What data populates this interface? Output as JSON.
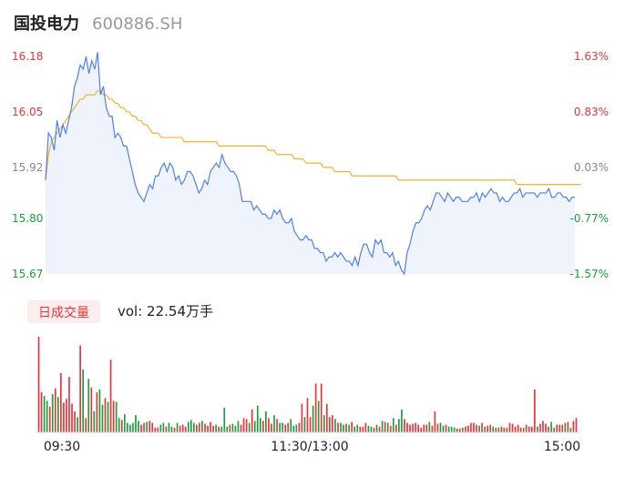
{
  "header": {
    "name": "国投电力",
    "code": "600886.SH"
  },
  "colors": {
    "up": "#e8333a",
    "down": "#1a9e3b",
    "neutral": "#888888",
    "price_line": "#4f81e8",
    "price_fill": "#eef3fc",
    "avg_line": "#f2b42c",
    "vol_button_bg": "#fdeeee"
  },
  "volume_panel": {
    "button_label": "日成交量",
    "vol_text": "vol: 22.54万手"
  },
  "chart_data": [
    {
      "type": "line",
      "title": "",
      "y_ticks": [
        "16.18",
        "16.05",
        "15.92",
        "15.80",
        "15.67"
      ],
      "y_tick_values": [
        16.18,
        16.05,
        15.92,
        15.8,
        15.67
      ],
      "pct_ticks": [
        "1.63%",
        "0.83%",
        "0.03%",
        "-0.77%",
        "-1.57%"
      ],
      "ylim": [
        15.67,
        16.18
      ],
      "x_ticks": [
        "09:30",
        "11:30/13:00",
        "15:00"
      ],
      "series": [
        {
          "values": [
            15.89,
            16.0,
            15.99,
            15.96,
            16.03,
            15.99,
            16.02,
            16.0,
            16.03,
            16.06,
            16.11,
            16.13,
            16.16,
            16.15,
            16.18,
            16.14,
            16.17,
            16.15,
            16.19,
            16.09,
            16.11,
            16.06,
            16.04,
            16.04,
            15.99,
            16.0,
            15.99,
            15.97,
            15.97,
            15.94,
            15.91,
            15.88,
            15.86,
            15.85,
            15.84,
            15.86,
            15.88,
            15.87,
            15.9,
            15.9,
            15.92,
            15.93,
            15.91,
            15.93,
            15.92,
            15.89,
            15.9,
            15.88,
            15.89,
            15.91,
            15.91,
            15.9,
            15.88,
            15.86,
            15.87,
            15.89,
            15.88,
            15.91,
            15.92,
            15.93,
            15.92,
            15.95,
            15.93,
            15.92,
            15.91,
            15.91,
            15.9,
            15.88,
            15.84,
            15.84,
            15.84,
            15.84,
            15.82,
            15.83,
            15.82,
            15.81,
            15.81,
            15.8,
            15.8,
            15.82,
            15.81,
            15.82,
            15.8,
            15.79,
            15.79,
            15.8,
            15.77,
            15.76,
            15.75,
            15.75,
            15.76,
            15.75,
            15.75,
            15.73,
            15.73,
            15.72,
            15.72,
            15.7,
            15.71,
            15.71,
            15.72,
            15.71,
            15.72,
            15.71,
            15.7,
            15.7,
            15.69,
            15.71,
            15.69,
            15.72,
            15.74,
            15.74,
            15.72,
            15.71,
            15.75,
            15.74,
            15.75,
            15.72,
            15.72,
            15.71,
            15.72,
            15.69,
            15.7,
            15.68,
            15.67,
            15.72,
            15.74,
            15.77,
            15.79,
            15.79,
            15.8,
            15.82,
            15.83,
            15.82,
            15.84,
            15.86,
            15.86,
            15.85,
            15.84,
            15.86,
            15.85,
            15.84,
            15.85,
            15.85,
            15.84,
            15.84,
            15.84,
            15.85,
            15.85,
            15.86,
            15.84,
            15.86,
            15.85,
            15.86,
            15.87,
            15.86,
            15.86,
            15.84,
            15.85,
            15.84,
            15.84,
            15.85,
            15.86,
            15.86,
            15.87,
            15.85,
            15.86,
            15.86,
            15.86,
            15.86,
            15.85,
            15.86,
            15.86,
            15.86,
            15.87,
            15.85,
            15.85,
            15.86,
            15.86,
            15.85,
            15.85,
            15.84,
            15.85,
            15.85
          ]
        },
        {
          "values": [
            15.89,
            15.95,
            15.98,
            15.99,
            16.0,
            16.01,
            16.02,
            16.03,
            16.04,
            16.05,
            16.06,
            16.07,
            16.08,
            16.08,
            16.09,
            16.09,
            16.09,
            16.09,
            16.1,
            16.1,
            16.09,
            16.09,
            16.08,
            16.08,
            16.07,
            16.07,
            16.06,
            16.06,
            16.05,
            16.05,
            16.04,
            16.04,
            16.03,
            16.03,
            16.02,
            16.02,
            16.01,
            16.0,
            16.0,
            16.0,
            15.99,
            15.99,
            15.99,
            15.99,
            15.99,
            15.99,
            15.99,
            15.99,
            15.98,
            15.98,
            15.98,
            15.98,
            15.98,
            15.98,
            15.98,
            15.98,
            15.98,
            15.98,
            15.98,
            15.98,
            15.97,
            15.97,
            15.97,
            15.97,
            15.97,
            15.97,
            15.97,
            15.97,
            15.97,
            15.97,
            15.97,
            15.97,
            15.97,
            15.97,
            15.97,
            15.97,
            15.97,
            15.96,
            15.96,
            15.96,
            15.95,
            15.95,
            15.95,
            15.95,
            15.95,
            15.95,
            15.94,
            15.94,
            15.94,
            15.94,
            15.93,
            15.93,
            15.93,
            15.93,
            15.93,
            15.93,
            15.92,
            15.92,
            15.92,
            15.92,
            15.91,
            15.91,
            15.91,
            15.91,
            15.91,
            15.91,
            15.9,
            15.9,
            15.9,
            15.9,
            15.9,
            15.9,
            15.9,
            15.9,
            15.9,
            15.9,
            15.9,
            15.9,
            15.9,
            15.9,
            15.9,
            15.9,
            15.89,
            15.89,
            15.89,
            15.89,
            15.89,
            15.89,
            15.89,
            15.89,
            15.89,
            15.89,
            15.89,
            15.89,
            15.89,
            15.89,
            15.89,
            15.89,
            15.89,
            15.89,
            15.89,
            15.89,
            15.89,
            15.89,
            15.89,
            15.89,
            15.89,
            15.89,
            15.89,
            15.89,
            15.89,
            15.89,
            15.89,
            15.89,
            15.89,
            15.89,
            15.89,
            15.89,
            15.89,
            15.89,
            15.89,
            15.89,
            15.89,
            15.88,
            15.88,
            15.88,
            15.88,
            15.88,
            15.88,
            15.88,
            15.88,
            15.88,
            15.88,
            15.88,
            15.88,
            15.88,
            15.88,
            15.88,
            15.88,
            15.88,
            15.88,
            15.88,
            15.88,
            15.88,
            15.88,
            15.88
          ]
        }
      ]
    },
    {
      "type": "bar",
      "title": "",
      "values": [
        100,
        42,
        38,
        33,
        27,
        40,
        46,
        37,
        62,
        31,
        35,
        58,
        30,
        22,
        16,
        91,
        66,
        15,
        56,
        47,
        22,
        42,
        45,
        29,
        36,
        32,
        76,
        33,
        32,
        15,
        13,
        19,
        10,
        8,
        10,
        18,
        12,
        8,
        10,
        11,
        12,
        10,
        5,
        5,
        8,
        10,
        6,
        10,
        6,
        5,
        10,
        7,
        8,
        6,
        11,
        13,
        10,
        8,
        10,
        12,
        9,
        7,
        11,
        7,
        8,
        6,
        6,
        26,
        6,
        8,
        9,
        7,
        12,
        8,
        15,
        14,
        10,
        24,
        12,
        28,
        15,
        12,
        22,
        15,
        9,
        18,
        14,
        10,
        10,
        8,
        10,
        14,
        7,
        8,
        10,
        30,
        16,
        36,
        16,
        28,
        51,
        33,
        51,
        18,
        30,
        16,
        18,
        14,
        10,
        10,
        8,
        9,
        8,
        11,
        6,
        8,
        6,
        6,
        10,
        7,
        6,
        5,
        8,
        6,
        12,
        11,
        10,
        7,
        15,
        8,
        14,
        24,
        14,
        10,
        8,
        9,
        10,
        8,
        5,
        8,
        8,
        11,
        7,
        22,
        9,
        10,
        7,
        8,
        6,
        6,
        5,
        4,
        4,
        5,
        6,
        7,
        10,
        10,
        8,
        7,
        10,
        6,
        7,
        8,
        6,
        5,
        5,
        6,
        5,
        5,
        10,
        9,
        6,
        8,
        5,
        5,
        8,
        6,
        6,
        45,
        6,
        9,
        12,
        9,
        6,
        11,
        5,
        8,
        8,
        8,
        10,
        11,
        5,
        12,
        15
      ]
    }
  ]
}
